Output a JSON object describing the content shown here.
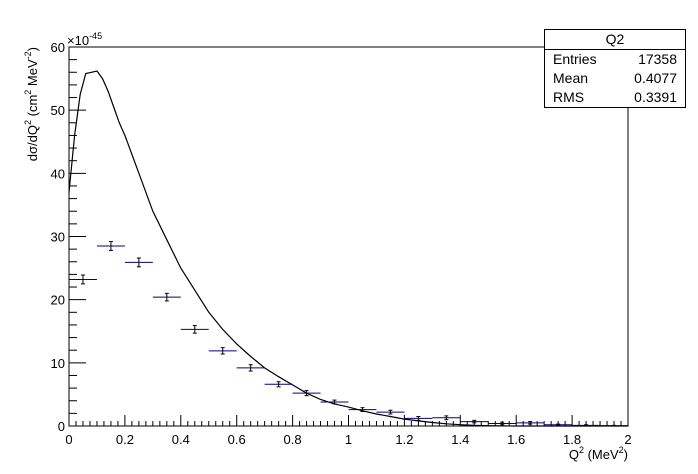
{
  "chart_data": {
    "type": "line",
    "ylabel": "dσ/dQ² (cm² MeV⁻²)",
    "ylabel_parts": {
      "base": "dσ/dQ",
      "sup1": "2",
      "mid": " (cm",
      "sup2": "2",
      "mid2": " MeV",
      "sup3": "-2",
      "end": ")"
    },
    "xlabel_parts": {
      "base": "Q",
      "sup1": "2",
      "end": " (MeV",
      "sup2": "2",
      "close": ")"
    },
    "y_exponent": "×10",
    "y_exponent_power": "-45",
    "xlim": [
      0,
      2
    ],
    "ylim": [
      0,
      60
    ],
    "x_ticks": [
      "0",
      "0.2",
      "0.4",
      "0.6",
      "0.8",
      "1",
      "1.2",
      "1.4",
      "1.6",
      "1.8",
      "2"
    ],
    "y_ticks": [
      "0",
      "10",
      "20",
      "30",
      "40",
      "50",
      "60"
    ],
    "grid": false,
    "series": [
      {
        "style": "line",
        "color": "#000000",
        "x": [
          0.0,
          0.02,
          0.04,
          0.06,
          0.08,
          0.1,
          0.12,
          0.14,
          0.16,
          0.18,
          0.2,
          0.25,
          0.3,
          0.35,
          0.4,
          0.45,
          0.5,
          0.55,
          0.6,
          0.65,
          0.7,
          0.75,
          0.8,
          0.85,
          0.9,
          0.95,
          1.0,
          1.05,
          1.1,
          1.15,
          1.2,
          1.25,
          1.3,
          1.35,
          1.4,
          1.45,
          1.5,
          1.55,
          1.6,
          1.7,
          1.8,
          1.9,
          2.0
        ],
        "y": [
          37.0,
          46.0,
          52.5,
          55.8,
          56.0,
          56.2,
          55.0,
          53.0,
          50.5,
          48.0,
          46.0,
          40.0,
          34.0,
          29.5,
          25.0,
          21.5,
          18.0,
          15.3,
          13.0,
          11.0,
          9.2,
          7.8,
          6.5,
          5.2,
          4.2,
          3.5,
          3.0,
          2.4,
          1.9,
          1.5,
          1.1,
          0.8,
          0.55,
          0.35,
          0.2,
          0.1,
          0.05,
          0.02,
          0.0,
          0.0,
          0.0,
          0.0,
          0.0
        ]
      },
      {
        "style": "errorbar",
        "color": "#000080",
        "x": [
          0.05,
          0.15,
          0.25,
          0.35,
          0.45,
          0.55,
          0.65,
          0.75,
          0.85,
          0.95,
          1.05,
          1.15,
          1.25,
          1.35,
          1.45,
          1.55,
          1.65,
          1.75,
          1.85,
          1.95
        ],
        "y": [
          23.2,
          28.5,
          25.9,
          20.4,
          15.3,
          11.9,
          9.2,
          6.6,
          5.2,
          3.8,
          2.6,
          2.2,
          1.2,
          1.3,
          0.7,
          0.4,
          0.5,
          0.2,
          0.1,
          0.05
        ],
        "xerr": 0.05,
        "yerr": [
          0.7,
          0.7,
          0.7,
          0.6,
          0.6,
          0.5,
          0.5,
          0.4,
          0.4,
          0.3,
          0.3,
          0.3,
          0.3,
          0.3,
          0.2,
          0.2,
          0.2,
          0.1,
          0.1,
          0.05
        ]
      }
    ]
  },
  "stats": {
    "title": "Q2",
    "entries_label": "Entries",
    "entries_value": "17358",
    "mean_label": "Mean",
    "mean_value": "0.4077",
    "rms_label": "RMS",
    "rms_value": "0.3391"
  }
}
